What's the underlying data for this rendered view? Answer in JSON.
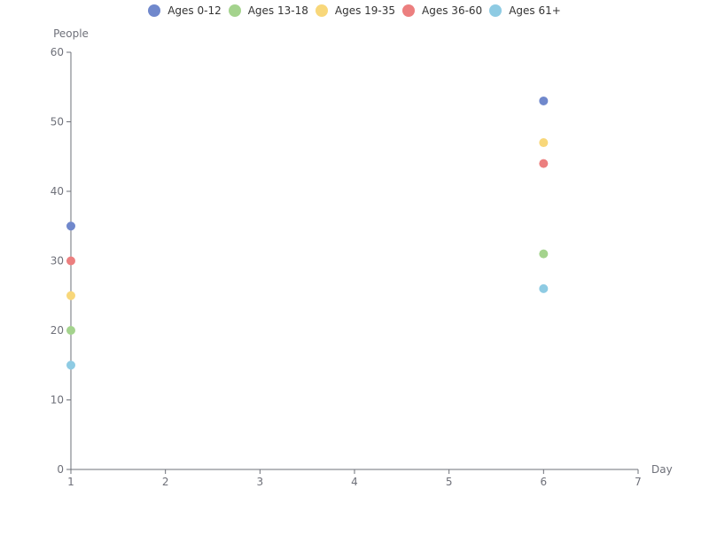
{
  "chart_data": {
    "type": "scatter",
    "xlabel": "Day",
    "ylabel": "People",
    "xlim": [
      1,
      7
    ],
    "ylim": [
      0,
      60
    ],
    "x_ticks": [
      "1",
      "2",
      "3",
      "4",
      "5",
      "6",
      "7"
    ],
    "y_ticks": [
      "0",
      "10",
      "20",
      "30",
      "40",
      "50",
      "60"
    ],
    "grid": false,
    "legend_position": "top-center",
    "series": [
      {
        "name": "Ages 0-12",
        "color": "#7088cc",
        "points": [
          {
            "x": 1,
            "y": 35
          },
          {
            "x": 6,
            "y": 53
          }
        ]
      },
      {
        "name": "Ages 13-18",
        "color": "#a4d38d",
        "points": [
          {
            "x": 1,
            "y": 20
          },
          {
            "x": 6,
            "y": 31
          }
        ]
      },
      {
        "name": "Ages 19-35",
        "color": "#f8d77a",
        "points": [
          {
            "x": 1,
            "y": 25
          },
          {
            "x": 6,
            "y": 47
          }
        ]
      },
      {
        "name": "Ages 36-60",
        "color": "#ec7f7f",
        "points": [
          {
            "x": 1,
            "y": 30
          },
          {
            "x": 6,
            "y": 44
          }
        ]
      },
      {
        "name": "Ages 61+",
        "color": "#8ecbe3",
        "points": [
          {
            "x": 1,
            "y": 15
          },
          {
            "x": 6,
            "y": 26
          }
        ]
      }
    ]
  }
}
